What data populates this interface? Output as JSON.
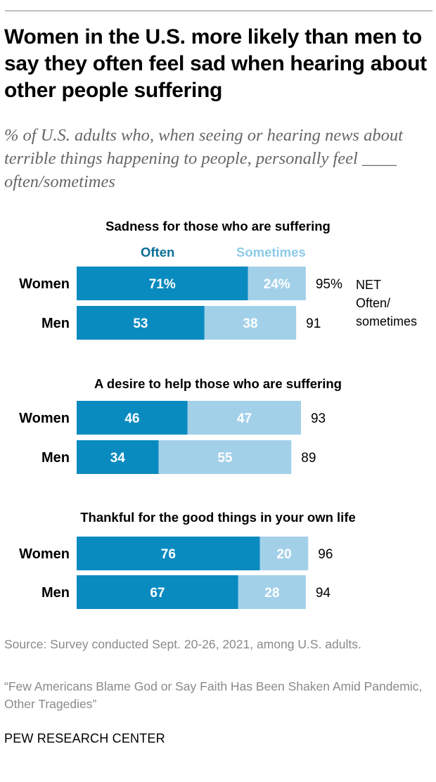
{
  "title": "Women in the U.S. more likely than men to say they often feel sad when hearing about other people suffering",
  "subtitle": "% of U.S. adults who, when seeing or hearing news about terrible things happening to people, personally feel ____ often/sometimes",
  "legend": {
    "often": "Often",
    "sometimes": "Sometimes"
  },
  "net_label": [
    "NET",
    "Often/",
    "sometimes"
  ],
  "colors": {
    "often": "#0a8bc0",
    "sometimes": "#a3d0e9",
    "often_legend": "#0a6d96",
    "sometimes_legend": "#8ccbe8"
  },
  "chart_data": [
    {
      "type": "bar",
      "stacked": true,
      "orientation": "horizontal",
      "title": "Sadness for those who are suffering",
      "categories": [
        "Women",
        "Men"
      ],
      "series": [
        {
          "name": "Often",
          "values": [
            71,
            53
          ],
          "labels": [
            "71%",
            "53"
          ]
        },
        {
          "name": "Sometimes",
          "values": [
            24,
            38
          ],
          "labels": [
            "24%",
            "38"
          ]
        }
      ],
      "net": [
        95,
        91
      ],
      "net_labels": [
        "95%",
        "91"
      ]
    },
    {
      "type": "bar",
      "stacked": true,
      "orientation": "horizontal",
      "title": "A desire to help those who are suffering",
      "categories": [
        "Women",
        "Men"
      ],
      "series": [
        {
          "name": "Often",
          "values": [
            46,
            34
          ],
          "labels": [
            "46",
            "34"
          ]
        },
        {
          "name": "Sometimes",
          "values": [
            47,
            55
          ],
          "labels": [
            "47",
            "55"
          ]
        }
      ],
      "net": [
        93,
        89
      ],
      "net_labels": [
        "93",
        "89"
      ]
    },
    {
      "type": "bar",
      "stacked": true,
      "orientation": "horizontal",
      "title": "Thankful for the good things in your own life",
      "categories": [
        "Women",
        "Men"
      ],
      "series": [
        {
          "name": "Often",
          "values": [
            76,
            67
          ],
          "labels": [
            "76",
            "67"
          ]
        },
        {
          "name": "Sometimes",
          "values": [
            20,
            28
          ],
          "labels": [
            "20",
            "28"
          ]
        }
      ],
      "net": [
        96,
        94
      ],
      "net_labels": [
        "96",
        "94"
      ]
    }
  ],
  "source": "Source: Survey conducted Sept. 20-26, 2021, among U.S. adults.",
  "report": "“Few Americans Blame God or Say Faith Has Been Shaken Amid Pandemic, Other Tragedies”",
  "credit": "PEW RESEARCH CENTER"
}
